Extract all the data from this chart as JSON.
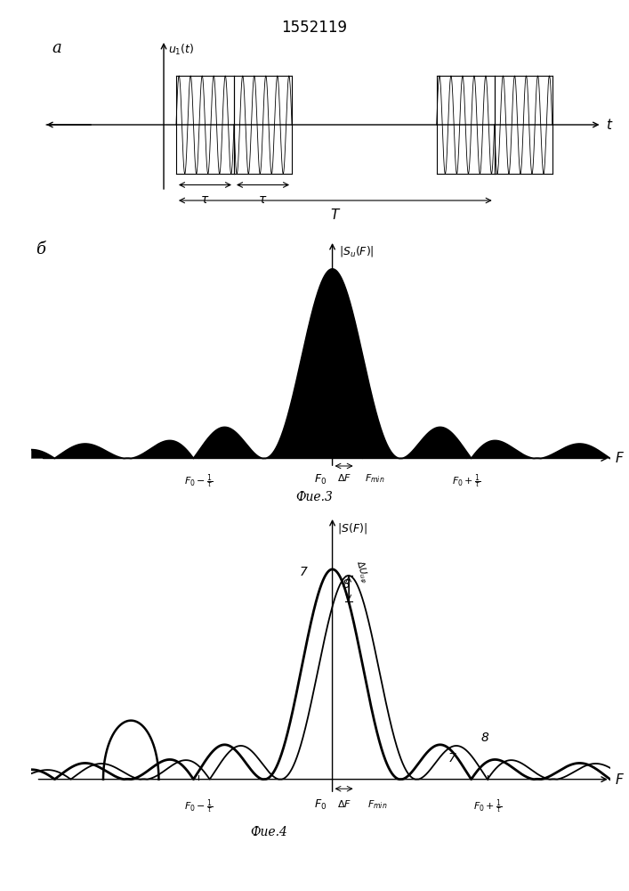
{
  "title": "1552119",
  "fig_width": 7.07,
  "fig_height": 10.0,
  "bg_color": "#ffffff",
  "label_a": "a",
  "label_b": "б",
  "fig3_caption": "Фие.3",
  "fig4_caption": "Фие.4"
}
